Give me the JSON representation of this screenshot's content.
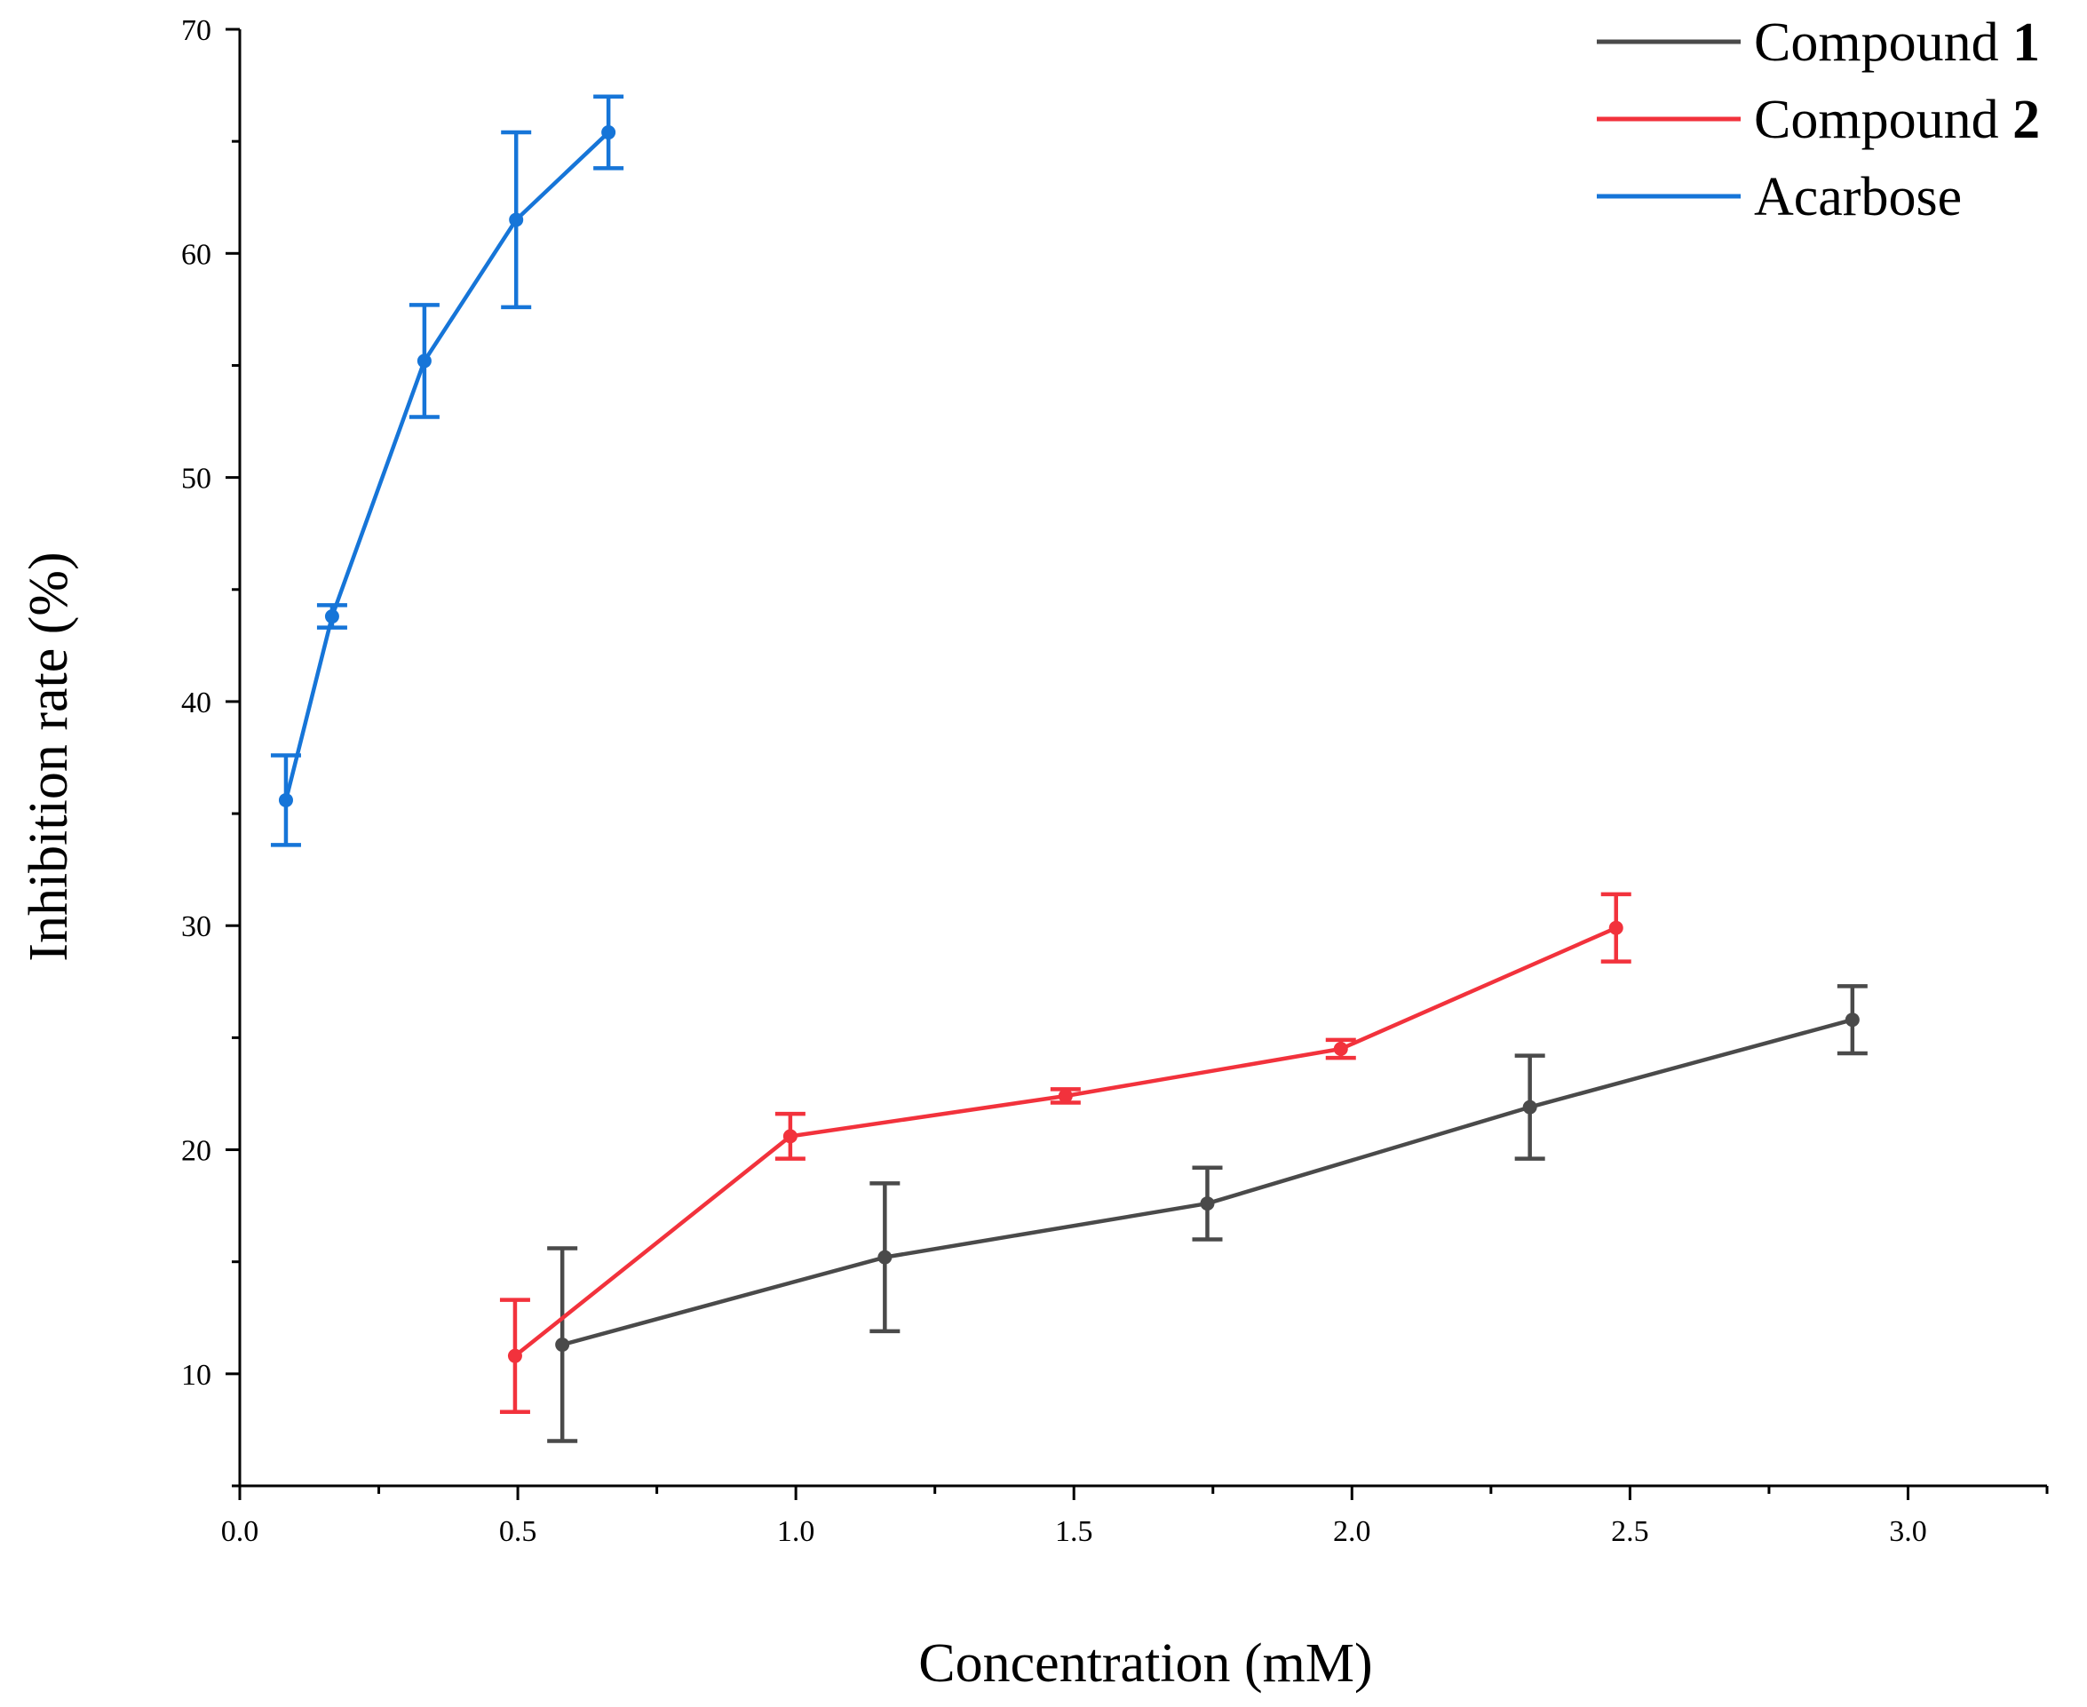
{
  "chart_data": {
    "type": "line",
    "title": "",
    "xlabel": "Concentration (mM)",
    "ylabel": "Inhibition rate (%)",
    "xlim": [
      0.0,
      3.25
    ],
    "ylim": [
      5,
      70
    ],
    "xticks": [
      0.0,
      0.5,
      1.0,
      1.5,
      2.0,
      2.5,
      3.0
    ],
    "xtick_labels": [
      "0.0",
      "0.5",
      "1.0",
      "1.5",
      "2.0",
      "2.5",
      "3.0"
    ],
    "yticks": [
      10,
      20,
      30,
      40,
      50,
      60,
      70
    ],
    "ytick_labels": [
      "10",
      "20",
      "30",
      "40",
      "50",
      "60",
      "70"
    ],
    "grid": false,
    "legend_position": "top-right",
    "series": [
      {
        "name": "Compound",
        "name_number": "1",
        "color": "#4a4a4a",
        "x": [
          0.58,
          1.16,
          1.74,
          2.32,
          2.9
        ],
        "y": [
          11.3,
          15.2,
          17.6,
          21.9,
          25.8
        ],
        "err": [
          4.3,
          3.3,
          1.6,
          2.3,
          1.5
        ]
      },
      {
        "name": "Compound",
        "name_number": "2",
        "color": "#f2323c",
        "x": [
          0.495,
          0.99,
          1.485,
          1.98,
          2.475
        ],
        "y": [
          10.8,
          20.6,
          22.4,
          24.5,
          29.9
        ],
        "err": [
          2.5,
          1.0,
          0.3,
          0.4,
          1.5
        ]
      },
      {
        "name": "Acarbose",
        "name_number": "",
        "color": "#1675d8",
        "x": [
          0.083,
          0.166,
          0.332,
          0.497,
          0.663
        ],
        "y": [
          35.6,
          43.8,
          55.2,
          61.5,
          65.4
        ],
        "err": [
          2.0,
          0.5,
          2.5,
          3.9,
          1.6
        ]
      }
    ]
  }
}
